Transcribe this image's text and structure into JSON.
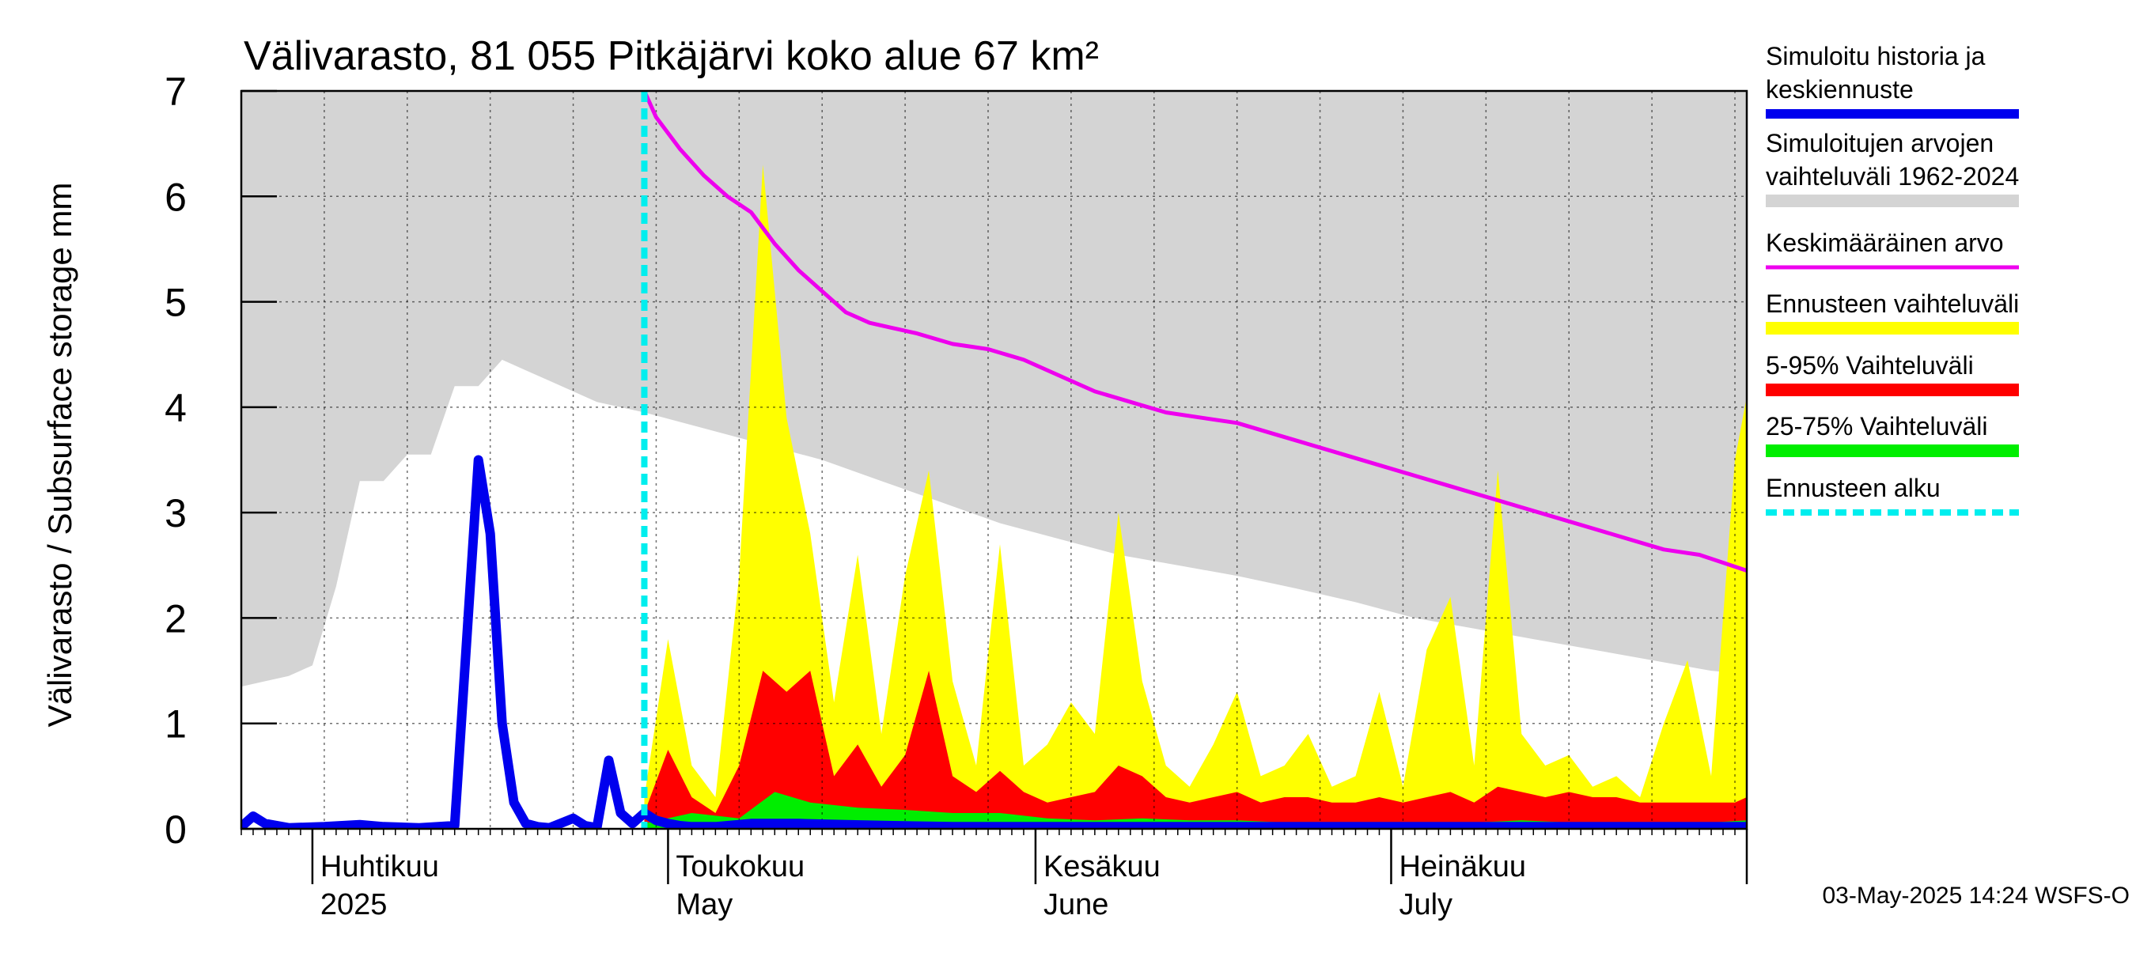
{
  "chart_data": {
    "type": "area",
    "title": "Välivarasto, 81 055 Pitkäjärvi koko alue 67 km²",
    "ylabel": "Välivarasto / Subsurface storage  mm",
    "ylim": [
      0,
      7
    ],
    "yticks": [
      "0",
      "1",
      "2",
      "3",
      "4",
      "5",
      "6",
      "7"
    ],
    "xlim": [
      "2025-03-26",
      "2025-07-31"
    ],
    "month_labels": [
      {
        "date": "2025-04-01",
        "fi": "Huhtikuu",
        "en": "2025"
      },
      {
        "date": "2025-05-01",
        "fi": "Toukokuu",
        "en": "May"
      },
      {
        "date": "2025-06-01",
        "fi": "Kesäkuu",
        "en": "June"
      },
      {
        "date": "2025-07-01",
        "fi": "Heinäkuu",
        "en": "July"
      }
    ],
    "forecast_start": "2025-04-29",
    "colors": {
      "history": "#0000ee",
      "range_hist": "#d4d4d4",
      "mean": "#ee00ee",
      "forecast_range": "#ffff00",
      "p5_95": "#ff0000",
      "p25_75": "#00ee00",
      "forecast_start": "#00eeee"
    },
    "legend": [
      {
        "label1": "Simuloitu historia ja",
        "label2": "keskiennuste",
        "color": "#0000ee",
        "style": "line-thick"
      },
      {
        "label1": "Simuloitujen arvojen",
        "label2": "vaihteluväli 1962-2024",
        "color": "#d4d4d4",
        "style": "band"
      },
      {
        "label1": "Keskimääräinen arvo",
        "label2": "",
        "color": "#ee00ee",
        "style": "line"
      },
      {
        "label1": "Ennusteen vaihteluväli",
        "label2": "",
        "color": "#ffff00",
        "style": "band"
      },
      {
        "label1": "5-95% Vaihteluväli",
        "label2": "",
        "color": "#ff0000",
        "style": "band"
      },
      {
        "label1": "25-75% Vaihteluväli",
        "label2": "",
        "color": "#00ee00",
        "style": "band"
      },
      {
        "label1": "Ennusteen alku",
        "label2": "",
        "color": "#00eeee",
        "style": "dashed"
      }
    ],
    "series": [
      {
        "name": "Simuloitujen arvojen vaihteluväli 1962-2024",
        "kind": "band",
        "x": [
          "2025-03-26",
          "2025-03-28",
          "2025-03-30",
          "2025-04-01",
          "2025-04-03",
          "2025-04-05",
          "2025-04-07",
          "2025-04-09",
          "2025-04-11",
          "2025-04-13",
          "2025-04-15",
          "2025-04-17",
          "2025-04-19",
          "2025-04-21",
          "2025-04-25",
          "2025-04-29",
          "2025-05-04",
          "2025-05-09",
          "2025-05-14",
          "2025-05-19",
          "2025-05-24",
          "2025-05-29",
          "2025-06-03",
          "2025-06-08",
          "2025-06-13",
          "2025-06-18",
          "2025-06-23",
          "2025-06-28",
          "2025-07-03",
          "2025-07-08",
          "2025-07-13",
          "2025-07-18",
          "2025-07-23",
          "2025-07-28",
          "2025-07-31"
        ],
        "low": [
          1.35,
          1.4,
          1.45,
          1.55,
          2.3,
          3.3,
          3.3,
          3.55,
          3.55,
          4.2,
          4.2,
          4.45,
          4.35,
          4.25,
          4.05,
          3.95,
          3.8,
          3.65,
          3.5,
          3.3,
          3.1,
          2.9,
          2.75,
          2.6,
          2.5,
          2.4,
          2.28,
          2.15,
          2.0,
          1.9,
          1.8,
          1.7,
          1.6,
          1.5,
          1.47
        ],
        "high": [
          7,
          7,
          7,
          7,
          7,
          7,
          7,
          7,
          7,
          7,
          7,
          7,
          7,
          7,
          7,
          7,
          7,
          7,
          7,
          7,
          7,
          7,
          7,
          7,
          7,
          7,
          7,
          7,
          7,
          7,
          7,
          7,
          7,
          7,
          7
        ]
      },
      {
        "name": "Ennusteen vaihteluväli",
        "kind": "band",
        "x": [
          "2025-04-29",
          "2025-05-01",
          "2025-05-03",
          "2025-05-05",
          "2025-05-07",
          "2025-05-09",
          "2025-05-11",
          "2025-05-13",
          "2025-05-15",
          "2025-05-17",
          "2025-05-19",
          "2025-05-21",
          "2025-05-23",
          "2025-05-25",
          "2025-05-27",
          "2025-05-29",
          "2025-05-31",
          "2025-06-02",
          "2025-06-04",
          "2025-06-06",
          "2025-06-08",
          "2025-06-10",
          "2025-06-12",
          "2025-06-14",
          "2025-06-16",
          "2025-06-18",
          "2025-06-20",
          "2025-06-22",
          "2025-06-24",
          "2025-06-26",
          "2025-06-28",
          "2025-06-30",
          "2025-07-02",
          "2025-07-04",
          "2025-07-06",
          "2025-07-08",
          "2025-07-10",
          "2025-07-12",
          "2025-07-14",
          "2025-07-16",
          "2025-07-18",
          "2025-07-20",
          "2025-07-22",
          "2025-07-24",
          "2025-07-26",
          "2025-07-28",
          "2025-07-30",
          "2025-07-31"
        ],
        "low": [
          0,
          0,
          0,
          0,
          0,
          0,
          0,
          0,
          0,
          0,
          0,
          0,
          0,
          0,
          0,
          0,
          0,
          0,
          0,
          0,
          0,
          0,
          0,
          0,
          0,
          0,
          0,
          0,
          0,
          0,
          0,
          0,
          0,
          0,
          0,
          0,
          0,
          0,
          0,
          0,
          0,
          0,
          0,
          0,
          0,
          0,
          0,
          0
        ],
        "high": [
          0.3,
          1.8,
          0.6,
          0.3,
          2.4,
          6.3,
          3.9,
          2.8,
          1.2,
          2.6,
          0.9,
          2.4,
          3.4,
          1.4,
          0.6,
          2.7,
          0.6,
          0.8,
          1.2,
          0.9,
          3.0,
          1.4,
          0.6,
          0.4,
          0.8,
          1.3,
          0.5,
          0.6,
          0.9,
          0.4,
          0.5,
          1.3,
          0.4,
          1.7,
          2.2,
          0.6,
          3.4,
          0.9,
          0.6,
          0.7,
          0.4,
          0.5,
          0.3,
          1.0,
          1.6,
          0.5,
          3.5,
          4.1
        ]
      },
      {
        "name": "5-95% Vaihteluväli",
        "kind": "band",
        "x": [
          "2025-04-29",
          "2025-05-01",
          "2025-05-03",
          "2025-05-05",
          "2025-05-07",
          "2025-05-09",
          "2025-05-11",
          "2025-05-13",
          "2025-05-15",
          "2025-05-17",
          "2025-05-19",
          "2025-05-21",
          "2025-05-23",
          "2025-05-25",
          "2025-05-27",
          "2025-05-29",
          "2025-05-31",
          "2025-06-02",
          "2025-06-04",
          "2025-06-06",
          "2025-06-08",
          "2025-06-10",
          "2025-06-12",
          "2025-06-14",
          "2025-06-16",
          "2025-06-18",
          "2025-06-20",
          "2025-06-22",
          "2025-06-24",
          "2025-06-26",
          "2025-06-28",
          "2025-06-30",
          "2025-07-02",
          "2025-07-04",
          "2025-07-06",
          "2025-07-08",
          "2025-07-10",
          "2025-07-12",
          "2025-07-14",
          "2025-07-16",
          "2025-07-18",
          "2025-07-20",
          "2025-07-22",
          "2025-07-24",
          "2025-07-26",
          "2025-07-28",
          "2025-07-30",
          "2025-07-31"
        ],
        "low": [
          0,
          0,
          0,
          0,
          0,
          0,
          0,
          0,
          0,
          0,
          0,
          0,
          0,
          0,
          0,
          0,
          0,
          0,
          0,
          0,
          0,
          0,
          0,
          0,
          0,
          0,
          0,
          0,
          0,
          0,
          0,
          0,
          0,
          0,
          0,
          0,
          0,
          0,
          0,
          0,
          0,
          0,
          0,
          0,
          0,
          0,
          0,
          0
        ],
        "high": [
          0.15,
          0.75,
          0.3,
          0.15,
          0.6,
          1.5,
          1.3,
          1.5,
          0.5,
          0.8,
          0.4,
          0.7,
          1.5,
          0.5,
          0.35,
          0.55,
          0.35,
          0.25,
          0.3,
          0.35,
          0.6,
          0.5,
          0.3,
          0.25,
          0.3,
          0.35,
          0.25,
          0.3,
          0.3,
          0.25,
          0.25,
          0.3,
          0.25,
          0.3,
          0.35,
          0.25,
          0.4,
          0.35,
          0.3,
          0.35,
          0.3,
          0.3,
          0.25,
          0.25,
          0.25,
          0.25,
          0.25,
          0.3
        ]
      },
      {
        "name": "25-75% Vaihteluväli",
        "kind": "band",
        "x": [
          "2025-04-29",
          "2025-05-03",
          "2025-05-07",
          "2025-05-10",
          "2025-05-13",
          "2025-05-17",
          "2025-05-21",
          "2025-05-25",
          "2025-05-29",
          "2025-06-02",
          "2025-06-06",
          "2025-06-10",
          "2025-06-14",
          "2025-06-18",
          "2025-06-22",
          "2025-06-26",
          "2025-06-30",
          "2025-07-04",
          "2025-07-08",
          "2025-07-12",
          "2025-07-16",
          "2025-07-20",
          "2025-07-24",
          "2025-07-28",
          "2025-07-31"
        ],
        "low": [
          0,
          0,
          0,
          0,
          0,
          0,
          0,
          0,
          0,
          0,
          0,
          0,
          0,
          0,
          0,
          0,
          0,
          0,
          0,
          0,
          0,
          0,
          0,
          0,
          0
        ],
        "high": [
          0.05,
          0.15,
          0.1,
          0.35,
          0.25,
          0.2,
          0.18,
          0.15,
          0.15,
          0.1,
          0.08,
          0.1,
          0.08,
          0.08,
          0.06,
          0.06,
          0.06,
          0.06,
          0.06,
          0.08,
          0.06,
          0.06,
          0.06,
          0.06,
          0.08
        ]
      },
      {
        "name": "Keskimääräinen arvo",
        "kind": "line",
        "x": [
          "2025-04-29",
          "2025-04-30",
          "2025-05-02",
          "2025-05-04",
          "2025-05-06",
          "2025-05-08",
          "2025-05-10",
          "2025-05-12",
          "2025-05-14",
          "2025-05-16",
          "2025-05-18",
          "2025-05-20",
          "2025-05-22",
          "2025-05-25",
          "2025-05-28",
          "2025-05-31",
          "2025-06-03",
          "2025-06-06",
          "2025-06-09",
          "2025-06-12",
          "2025-06-15",
          "2025-06-18",
          "2025-06-21",
          "2025-06-24",
          "2025-06-27",
          "2025-06-30",
          "2025-07-03",
          "2025-07-06",
          "2025-07-09",
          "2025-07-12",
          "2025-07-15",
          "2025-07-18",
          "2025-07-21",
          "2025-07-24",
          "2025-07-27",
          "2025-07-31"
        ],
        "y": [
          7.0,
          6.75,
          6.45,
          6.2,
          6.0,
          5.85,
          5.55,
          5.3,
          5.1,
          4.9,
          4.8,
          4.75,
          4.7,
          4.6,
          4.55,
          4.45,
          4.3,
          4.15,
          4.05,
          3.95,
          3.9,
          3.85,
          3.75,
          3.65,
          3.55,
          3.45,
          3.35,
          3.25,
          3.15,
          3.05,
          2.95,
          2.85,
          2.75,
          2.65,
          2.6,
          2.45
        ]
      },
      {
        "name": "Simuloitu historia ja keskiennuste",
        "kind": "line",
        "x": [
          "2025-03-26",
          "2025-03-27",
          "2025-03-28",
          "2025-03-30",
          "2025-04-02",
          "2025-04-05",
          "2025-04-07",
          "2025-04-10",
          "2025-04-13",
          "2025-04-15",
          "2025-04-16",
          "2025-04-17",
          "2025-04-18",
          "2025-04-19",
          "2025-04-20",
          "2025-04-21",
          "2025-04-23",
          "2025-04-24",
          "2025-04-25",
          "2025-04-26",
          "2025-04-27",
          "2025-04-28",
          "2025-04-29",
          "2025-04-30",
          "2025-05-01",
          "2025-05-02",
          "2025-05-03",
          "2025-05-05",
          "2025-05-08",
          "2025-05-12",
          "2025-05-16",
          "2025-05-20",
          "2025-05-25",
          "2025-05-30",
          "2025-06-04",
          "2025-06-09",
          "2025-06-14",
          "2025-06-20",
          "2025-06-26",
          "2025-07-02",
          "2025-07-08",
          "2025-07-14",
          "2025-07-20",
          "2025-07-26",
          "2025-07-31"
        ],
        "y": [
          0.02,
          0.12,
          0.05,
          0.01,
          0.02,
          0.04,
          0.02,
          0.01,
          0.03,
          3.5,
          2.8,
          1.0,
          0.25,
          0.05,
          0.02,
          0.01,
          0.1,
          0.03,
          0.01,
          0.65,
          0.15,
          0.05,
          0.15,
          0.08,
          0.05,
          0.03,
          0.02,
          0.02,
          0.05,
          0.05,
          0.04,
          0.03,
          0.02,
          0.02,
          0.02,
          0.02,
          0.02,
          0.02,
          0.02,
          0.02,
          0.02,
          0.02,
          0.02,
          0.02,
          0.02
        ]
      }
    ]
  },
  "footer": "03-May-2025 14:24 WSFS-O"
}
